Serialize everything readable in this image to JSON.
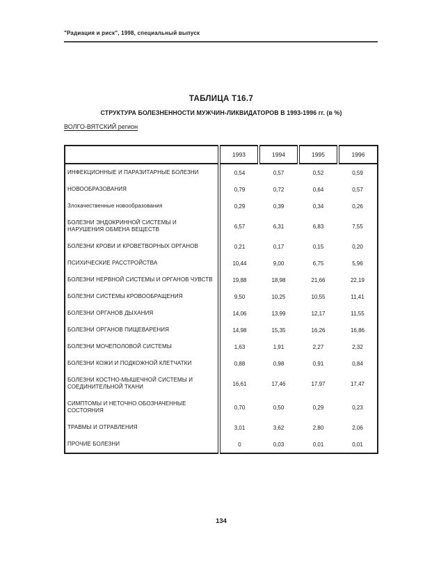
{
  "page": {
    "journal_header": "\"Радиация и риск\", 1998, специальный выпуск",
    "page_number": "134",
    "ink_color": "#1b1b1b",
    "background_color": "#ffffff"
  },
  "table_block": {
    "title": "ТАБЛИЦА Т16.7",
    "subtitle": "СТРУКТУРА БОЛЕЗНЕННОСТИ МУЖЧИН-ЛИКВИДАТОРОВ В 1993-1996 гг. (в %)",
    "region": "ВОЛГО-ВЯТСКИЙ регион"
  },
  "chart_data": {
    "type": "table",
    "title": "СТРУКТУРА БОЛЕЗНЕННОСТИ МУЖЧИН-ЛИКВИДАТОРОВ В 1993-1996 гг. (в %)",
    "columns": [
      "1993",
      "1994",
      "1995",
      "1996"
    ],
    "rows": [
      {
        "label": "ИНФЕКЦИОННЫЕ И ПАРАЗИТАРНЫЕ БОЛЕЗНИ",
        "values": [
          "0,54",
          "0,57",
          "0,52",
          "0,59"
        ]
      },
      {
        "label": "НОВООБРАЗОВАНИЯ",
        "values": [
          "0,79",
          "0,72",
          "0,64",
          "0,57"
        ]
      },
      {
        "label": "Злокачественные новообразования",
        "values": [
          "0,29",
          "0,39",
          "0,34",
          "0,26"
        ]
      },
      {
        "label": "БОЛЕЗНИ ЭНДОКРИННОЙ СИСТЕМЫ И НАРУШЕНИЯ ОБМЕНА ВЕЩЕСТВ",
        "values": [
          "6,57",
          "6,31",
          "6,83",
          "7,55"
        ]
      },
      {
        "label": "БОЛЕЗНИ КРОВИ И КРОВЕТВОРНЫХ ОРГАНОВ",
        "values": [
          "0,21",
          "0,17",
          "0,15",
          "0,20"
        ]
      },
      {
        "label": "ПСИХИЧЕСКИЕ РАССТРОЙСТВА",
        "values": [
          "10,44",
          "9,00",
          "6,75",
          "5,96"
        ]
      },
      {
        "label": "БОЛЕЗНИ НЕРВНОЙ СИСТЕМЫ И ОРГАНОВ ЧУВСТВ",
        "values": [
          "19,88",
          "18,98",
          "21,66",
          "22,19"
        ]
      },
      {
        "label": "БОЛЕЗНИ СИСТЕМЫ КРОВООБРАЩЕНИЯ",
        "values": [
          "9,50",
          "10,25",
          "10,55",
          "11,41"
        ]
      },
      {
        "label": "БОЛЕЗНИ ОРГАНОВ ДЫХАНИЯ",
        "values": [
          "14,06",
          "13,99",
          "12,17",
          "11,55"
        ]
      },
      {
        "label": "БОЛЕЗНИ ОРГАНОВ ПИЩЕВАРЕНИЯ",
        "values": [
          "14,98",
          "15,35",
          "16,26",
          "16,86"
        ]
      },
      {
        "label": "БОЛЕЗНИ МОЧЕПОЛОВОЙ СИСТЕМЫ",
        "values": [
          "1,63",
          "1,91",
          "2,27",
          "2,32"
        ]
      },
      {
        "label": "БОЛЕЗНИ КОЖИ И ПОДКОЖНОЙ КЛЕТЧАТКИ",
        "values": [
          "0,88",
          "0,98",
          "0,91",
          "0,84"
        ]
      },
      {
        "label": "БОЛЕЗНИ КОСТНО-МЫШЕЧНОЙ СИСТЕМЫ И СОЕДИНИТЕЛЬНОЙ ТКАНИ",
        "values": [
          "16,61",
          "17,46",
          "17,97",
          "17,47"
        ]
      },
      {
        "label": "СИМПТОМЫ И НЕТОЧНО ОБОЗНАЧЕННЫЕ СОСТОЯНИЯ",
        "values": [
          "0,70",
          "0,50",
          "0,29",
          "0,23"
        ]
      },
      {
        "label": "ТРАВМЫ И ОТРАВЛЕНИЯ",
        "values": [
          "3,01",
          "3,62",
          "2,80",
          "2,06"
        ]
      },
      {
        "label": "ПРОЧИЕ БОЛЕЗНИ",
        "values": [
          "0",
          "0,03",
          "0,01",
          "0,01"
        ]
      }
    ]
  }
}
